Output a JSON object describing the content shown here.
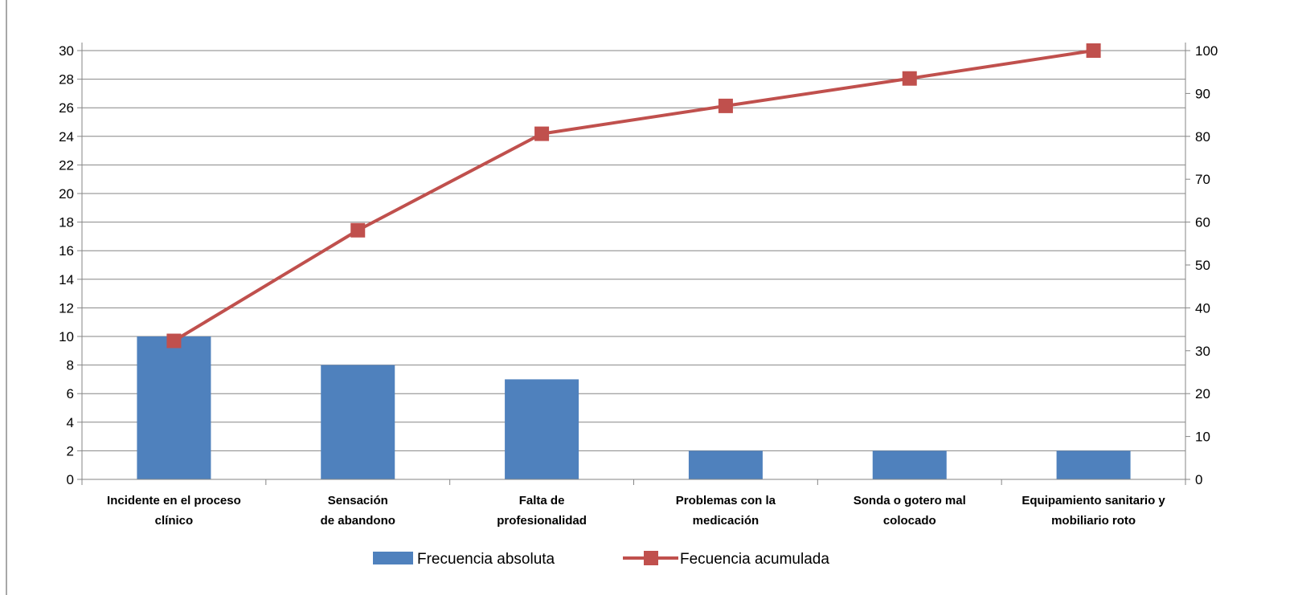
{
  "chart_data": {
    "type": "bar",
    "categories": [
      [
        "Incidente en el proceso",
        "clínico"
      ],
      [
        "Sensación",
        "de abandono"
      ],
      [
        "Falta de",
        "profesionalidad"
      ],
      [
        "Problemas con la",
        "medicación"
      ],
      [
        "Sonda o gotero mal",
        "colocado"
      ],
      [
        "Equipamiento sanitario y",
        "mobiliario roto"
      ]
    ],
    "series": [
      {
        "name": "Frecuencia absoluta",
        "type": "bar",
        "axis": "left",
        "values": [
          10,
          8,
          7,
          2,
          2,
          2
        ],
        "color": "#4f81bd"
      },
      {
        "name": "Fecuencia acumulada",
        "type": "line",
        "axis": "right",
        "values": [
          32.3,
          58.1,
          80.6,
          87.1,
          93.5,
          100
        ],
        "color": "#c0504d"
      }
    ],
    "y_left": {
      "min": 0,
      "max": 30,
      "step": 2,
      "ticks": [
        0,
        2,
        4,
        6,
        8,
        10,
        12,
        14,
        16,
        18,
        20,
        22,
        24,
        26,
        28,
        30
      ]
    },
    "y_right": {
      "min": 0,
      "max": 100,
      "step": 10,
      "ticks": [
        0,
        10,
        20,
        30,
        40,
        50,
        60,
        70,
        80,
        90,
        100
      ]
    },
    "grid": true,
    "legend_position": "bottom"
  }
}
